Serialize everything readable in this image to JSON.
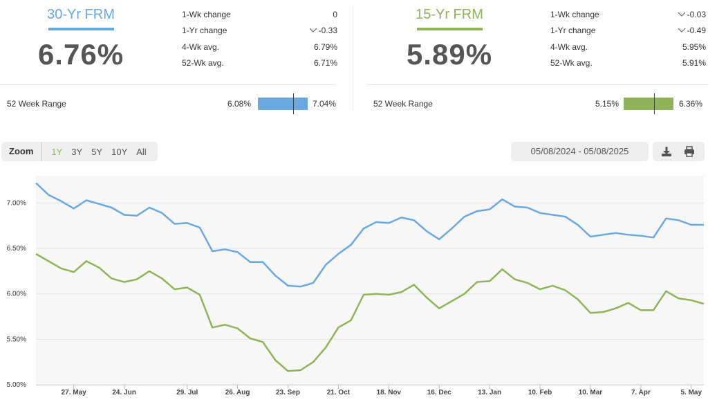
{
  "rates": [
    {
      "id": "frm30",
      "title": "30-Yr FRM",
      "color": "#6aa8e0",
      "rate": "6.76%",
      "stats": [
        {
          "label": "1-Wk change",
          "value": "0",
          "down": false
        },
        {
          "label": "1-Yr change",
          "value": "-0.33",
          "down": true
        },
        {
          "label": "4-Wk avg.",
          "value": "6.79%",
          "down": false
        },
        {
          "label": "52-Wk avg.",
          "value": "6.71%",
          "down": false
        }
      ],
      "range_label": "52 Week Range",
      "range_min": "6.08%",
      "range_max": "7.04%",
      "range_marker_fraction": 0.71
    },
    {
      "id": "frm15",
      "title": "15-Yr FRM",
      "color": "#8fb357",
      "rate": "5.89%",
      "stats": [
        {
          "label": "1-Wk change",
          "value": "-0.03",
          "down": true
        },
        {
          "label": "1-Yr change",
          "value": "-0.49",
          "down": true
        },
        {
          "label": "4-Wk avg.",
          "value": "5.95%",
          "down": false
        },
        {
          "label": "52-Wk avg.",
          "value": "5.91%",
          "down": false
        }
      ],
      "range_label": "52 Week Range",
      "range_min": "5.15%",
      "range_max": "6.36%",
      "range_marker_fraction": 0.61
    }
  ],
  "toolbar": {
    "zoom_label": "Zoom",
    "zoom_options": [
      "1Y",
      "3Y",
      "5Y",
      "10Y",
      "All"
    ],
    "active_zoom": "1Y",
    "date_range": "05/08/2024 - 05/08/2025",
    "download_icon": "download-icon",
    "print_icon": "print-icon"
  },
  "chart_data": {
    "type": "line",
    "ylim": [
      5.0,
      7.3
    ],
    "y_ticks": [
      "5.00%",
      "5.50%",
      "6.00%",
      "6.50%",
      "7.00%"
    ],
    "y_tick_values": [
      5.0,
      5.5,
      6.0,
      6.5,
      7.0
    ],
    "x_ticks": [
      "27. May",
      "24. Jun",
      "29. Jul",
      "26. Aug",
      "23. Sep",
      "21. Oct",
      "18. Nov",
      "16. Dec",
      "13. Jan",
      "10. Feb",
      "10. Mar",
      "7. Apr",
      "5. May"
    ],
    "x_tick_weeks": [
      3,
      7,
      12,
      16,
      20,
      24,
      28,
      32,
      36,
      40,
      44,
      48,
      52
    ],
    "grid": true,
    "series": [
      {
        "color": "#6aa8e0",
        "values": [
          7.22,
          7.09,
          7.02,
          6.94,
          7.03,
          6.99,
          6.95,
          6.87,
          6.86,
          6.95,
          6.89,
          6.77,
          6.78,
          6.73,
          6.47,
          6.49,
          6.46,
          6.35,
          6.35,
          6.2,
          6.09,
          6.08,
          6.12,
          6.32,
          6.44,
          6.54,
          6.72,
          6.79,
          6.78,
          6.84,
          6.81,
          6.69,
          6.6,
          6.72,
          6.85,
          6.91,
          6.93,
          7.04,
          6.96,
          6.95,
          6.89,
          6.87,
          6.85,
          6.76,
          6.63,
          6.65,
          6.67,
          6.65,
          6.64,
          6.62,
          6.83,
          6.81,
          6.76,
          6.76
        ]
      },
      {
        "color": "#8fb357",
        "values": [
          6.44,
          6.36,
          6.28,
          6.24,
          6.36,
          6.29,
          6.17,
          6.13,
          6.16,
          6.25,
          6.17,
          6.05,
          6.07,
          5.99,
          5.63,
          5.66,
          5.62,
          5.51,
          5.47,
          5.27,
          5.15,
          5.16,
          5.25,
          5.41,
          5.63,
          5.71,
          5.99,
          6.0,
          5.99,
          6.02,
          6.1,
          5.96,
          5.84,
          5.92,
          6.0,
          6.13,
          6.14,
          6.27,
          6.16,
          6.12,
          6.05,
          6.09,
          6.04,
          5.94,
          5.79,
          5.8,
          5.84,
          5.9,
          5.82,
          5.82,
          6.03,
          5.95,
          5.93,
          5.89
        ]
      }
    ]
  }
}
